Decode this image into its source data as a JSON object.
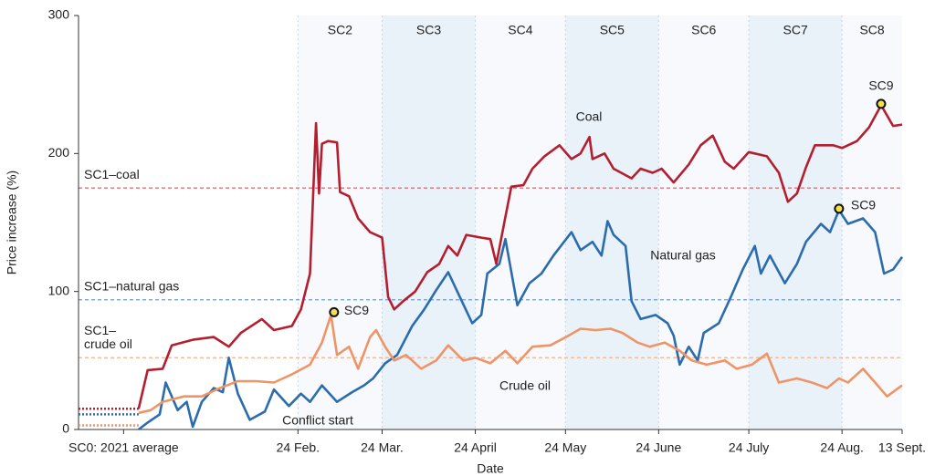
{
  "chart_data": {
    "type": "line",
    "y_label": "Price increase (%)",
    "x_label": "Date",
    "ylim": [
      0,
      300
    ],
    "yticks": [
      0,
      100,
      200,
      300
    ],
    "xlim": [
      -73,
      201
    ],
    "xticks": [
      {
        "value": -58,
        "label": "SC0: 2021 average"
      },
      {
        "value": 0,
        "label": "24 Feb."
      },
      {
        "value": 28,
        "label": "24 Mar."
      },
      {
        "value": 59,
        "label": "24 April"
      },
      {
        "value": 89,
        "label": "24 May"
      },
      {
        "value": 120,
        "label": "24 June"
      },
      {
        "value": 150,
        "label": "24 July"
      },
      {
        "value": 181,
        "label": "24 Aug."
      },
      {
        "value": 201,
        "label": "13 Sept."
      }
    ],
    "scenarios": [
      {
        "label": "SC2",
        "start": 0,
        "end": 28,
        "shaded": false
      },
      {
        "label": "SC3",
        "start": 28,
        "end": 59,
        "shaded": true
      },
      {
        "label": "SC4",
        "start": 59,
        "end": 89,
        "shaded": false
      },
      {
        "label": "SC5",
        "start": 89,
        "end": 120,
        "shaded": true
      },
      {
        "label": "SC6",
        "start": 120,
        "end": 150,
        "shaded": false
      },
      {
        "label": "SC7",
        "start": 150,
        "end": 181,
        "shaded": true
      },
      {
        "label": "SC8",
        "start": 181,
        "end": 201,
        "shaded": false
      }
    ],
    "reference_lines": [
      {
        "label_lines": [
          "SC1–coal"
        ],
        "value": 175,
        "color": "#d9747c"
      },
      {
        "label_lines": [
          "SC1–natural gas"
        ],
        "value": 94,
        "color": "#6f9bd0"
      },
      {
        "label_lines": [
          "SC1–",
          "crude oil"
        ],
        "value": 52,
        "color": "#f4b79a"
      }
    ],
    "series": [
      {
        "name": "Coal",
        "color": "#b31f2f",
        "baseline": 15,
        "x": [
          -53,
          -50,
          -45,
          -42,
          -35,
          -28,
          -23,
          -19,
          -12,
          -8,
          -2,
          1,
          4,
          6,
          7,
          8,
          10,
          13,
          14,
          17,
          20,
          24,
          28,
          30,
          32,
          35,
          39,
          43,
          47,
          50,
          53,
          56,
          61,
          64,
          66,
          69,
          71,
          75,
          78,
          82,
          87,
          91,
          94,
          97,
          98,
          102,
          105,
          111,
          114,
          118,
          121,
          125,
          130,
          134,
          138,
          142,
          145,
          150,
          156,
          160,
          163,
          166,
          169,
          172,
          178,
          181,
          186,
          190,
          194,
          198,
          201
        ],
        "values": [
          15,
          43,
          44,
          61,
          65,
          67,
          60,
          70,
          80,
          72,
          75,
          87,
          113,
          222,
          171,
          207,
          209,
          208,
          172,
          169,
          153,
          143,
          139,
          96,
          87,
          93,
          100,
          114,
          120,
          133,
          126,
          141,
          139,
          138,
          120,
          154,
          176,
          177,
          189,
          198,
          206,
          196,
          200,
          212,
          196,
          200,
          189,
          182,
          189,
          186,
          189,
          179,
          192,
          206,
          213,
          194,
          189,
          201,
          198,
          186,
          165,
          171,
          190,
          206,
          206,
          204,
          209,
          219,
          235,
          220,
          221
        ]
      },
      {
        "name": "Natural gas",
        "color": "#2b6cad",
        "baseline": 11,
        "x": [
          -53,
          -50,
          -46,
          -44,
          -40,
          -37,
          -35,
          -32,
          -28,
          -25,
          -23,
          -20,
          -16,
          -11,
          -8,
          -3,
          1,
          4,
          8,
          13,
          18,
          22,
          25,
          29,
          33,
          38,
          42,
          46,
          50,
          53,
          58,
          61,
          63,
          67,
          69,
          73,
          77,
          81,
          85,
          91,
          94,
          98,
          101,
          103,
          105,
          109,
          111,
          114,
          119,
          123,
          125,
          127,
          130,
          133,
          135,
          140,
          144,
          148,
          152,
          154,
          157,
          162,
          166,
          169,
          174,
          177,
          180,
          183,
          188,
          192,
          195,
          198,
          201
        ],
        "values": [
          0,
          5,
          11,
          34,
          14,
          20,
          2,
          20,
          30,
          27,
          52,
          26,
          7,
          13,
          29,
          17,
          26,
          20,
          32,
          20,
          27,
          32,
          37,
          48,
          54,
          75,
          87,
          101,
          114,
          100,
          77,
          83,
          113,
          120,
          138,
          90,
          106,
          113,
          126,
          143,
          130,
          136,
          126,
          151,
          141,
          133,
          93,
          80,
          83,
          77,
          68,
          47,
          60,
          50,
          70,
          77,
          96,
          116,
          133,
          113,
          126,
          106,
          120,
          136,
          149,
          143,
          159,
          149,
          153,
          143,
          113,
          116,
          125
        ]
      },
      {
        "name": "Crude oil",
        "color": "#ef9467",
        "baseline": 3,
        "x": [
          -53,
          -49,
          -45,
          -38,
          -32,
          -26,
          -20,
          -14,
          -8,
          -2,
          4,
          8,
          11,
          13,
          17,
          20,
          24,
          26,
          29,
          32,
          36,
          41,
          46,
          50,
          55,
          59,
          64,
          69,
          73,
          78,
          84,
          90,
          94,
          99,
          104,
          108,
          113,
          117,
          122,
          127,
          131,
          136,
          142,
          146,
          151,
          156,
          160,
          166,
          171,
          176,
          180,
          183,
          188,
          192,
          196,
          201
        ],
        "values": [
          12,
          14,
          20,
          24,
          24,
          30,
          35,
          35,
          34,
          40,
          47,
          63,
          83,
          54,
          60,
          44,
          67,
          72,
          60,
          50,
          54,
          44,
          50,
          61,
          50,
          52,
          48,
          57,
          48,
          60,
          61,
          68,
          73,
          72,
          73,
          70,
          63,
          60,
          63,
          57,
          50,
          47,
          50,
          44,
          47,
          55,
          34,
          37,
          34,
          30,
          37,
          34,
          44,
          34,
          24,
          32
        ]
      }
    ],
    "points": [
      {
        "label": "SC9",
        "x": 194,
        "y": 236
      },
      {
        "label": "SC9",
        "x": 180,
        "y": 160
      },
      {
        "label": "SC9",
        "x": 12,
        "y": 85
      }
    ],
    "annotations": [
      "Coal",
      "Natural gas",
      "Crude oil",
      "Conflict start"
    ]
  }
}
